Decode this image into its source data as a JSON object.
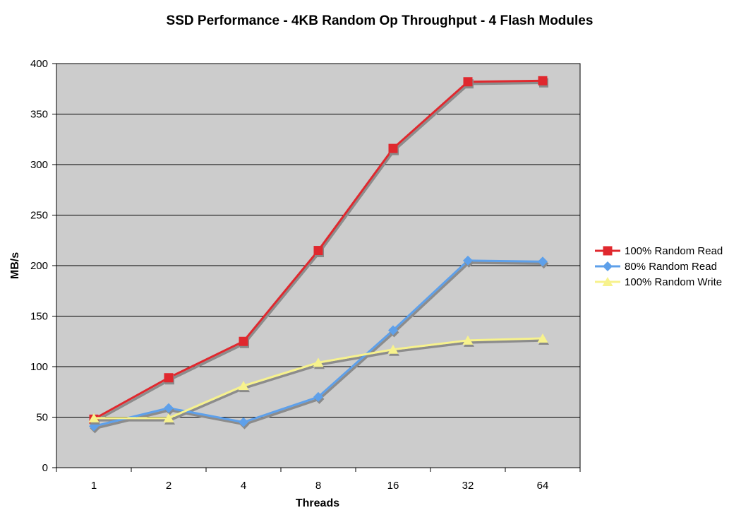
{
  "chart_data": {
    "type": "line",
    "title": "SSD Performance - 4KB Random Op Throughput - 4 Flash Modules",
    "xlabel": "Threads",
    "ylabel": "MB/s",
    "categories": [
      "1",
      "2",
      "4",
      "8",
      "16",
      "32",
      "64"
    ],
    "ylim": [
      0,
      400
    ],
    "yticks": [
      0,
      50,
      100,
      150,
      200,
      250,
      300,
      350,
      400
    ],
    "grid": true,
    "legend_position": "right",
    "plot_background": "#cccccc",
    "series": [
      {
        "name": "100% Random Read",
        "color": "#e0282e",
        "marker": "square",
        "values": [
          48,
          89,
          125,
          215,
          316,
          382,
          383
        ]
      },
      {
        "name": "80% Random Read",
        "color": "#5ea0ea",
        "marker": "diamond",
        "values": [
          41,
          59,
          45,
          70,
          136,
          205,
          204
        ]
      },
      {
        "name": "100% Random Write",
        "color": "#f7f28d",
        "marker": "triangle",
        "values": [
          49,
          49,
          81,
          104,
          117,
          126,
          128
        ]
      }
    ]
  }
}
